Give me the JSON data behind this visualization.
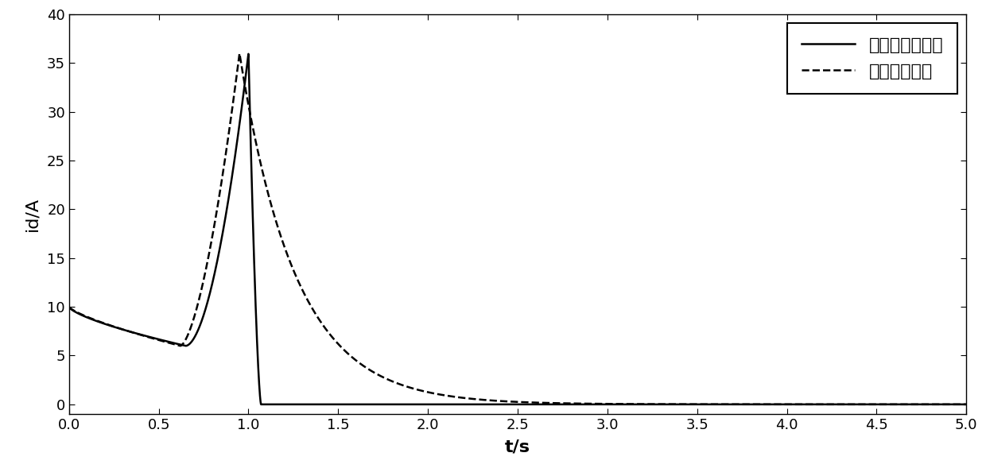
{
  "xlim": [
    0,
    5
  ],
  "ylim": [
    -1,
    40
  ],
  "xlabel": "t/s",
  "ylabel": "id/A",
  "xticks": [
    0,
    0.5,
    1.0,
    1.5,
    2.0,
    2.5,
    3.0,
    3.5,
    4.0,
    4.5,
    5.0
  ],
  "yticks": [
    0,
    5,
    10,
    15,
    20,
    25,
    30,
    35,
    40
  ],
  "legend1": "解耦滑模自适应",
  "legend2": "普通滑模控制",
  "bg_color": "#ffffff",
  "line_color": "#000000",
  "label_fontsize": 16,
  "tick_fontsize": 13,
  "legend_fontsize": 16
}
